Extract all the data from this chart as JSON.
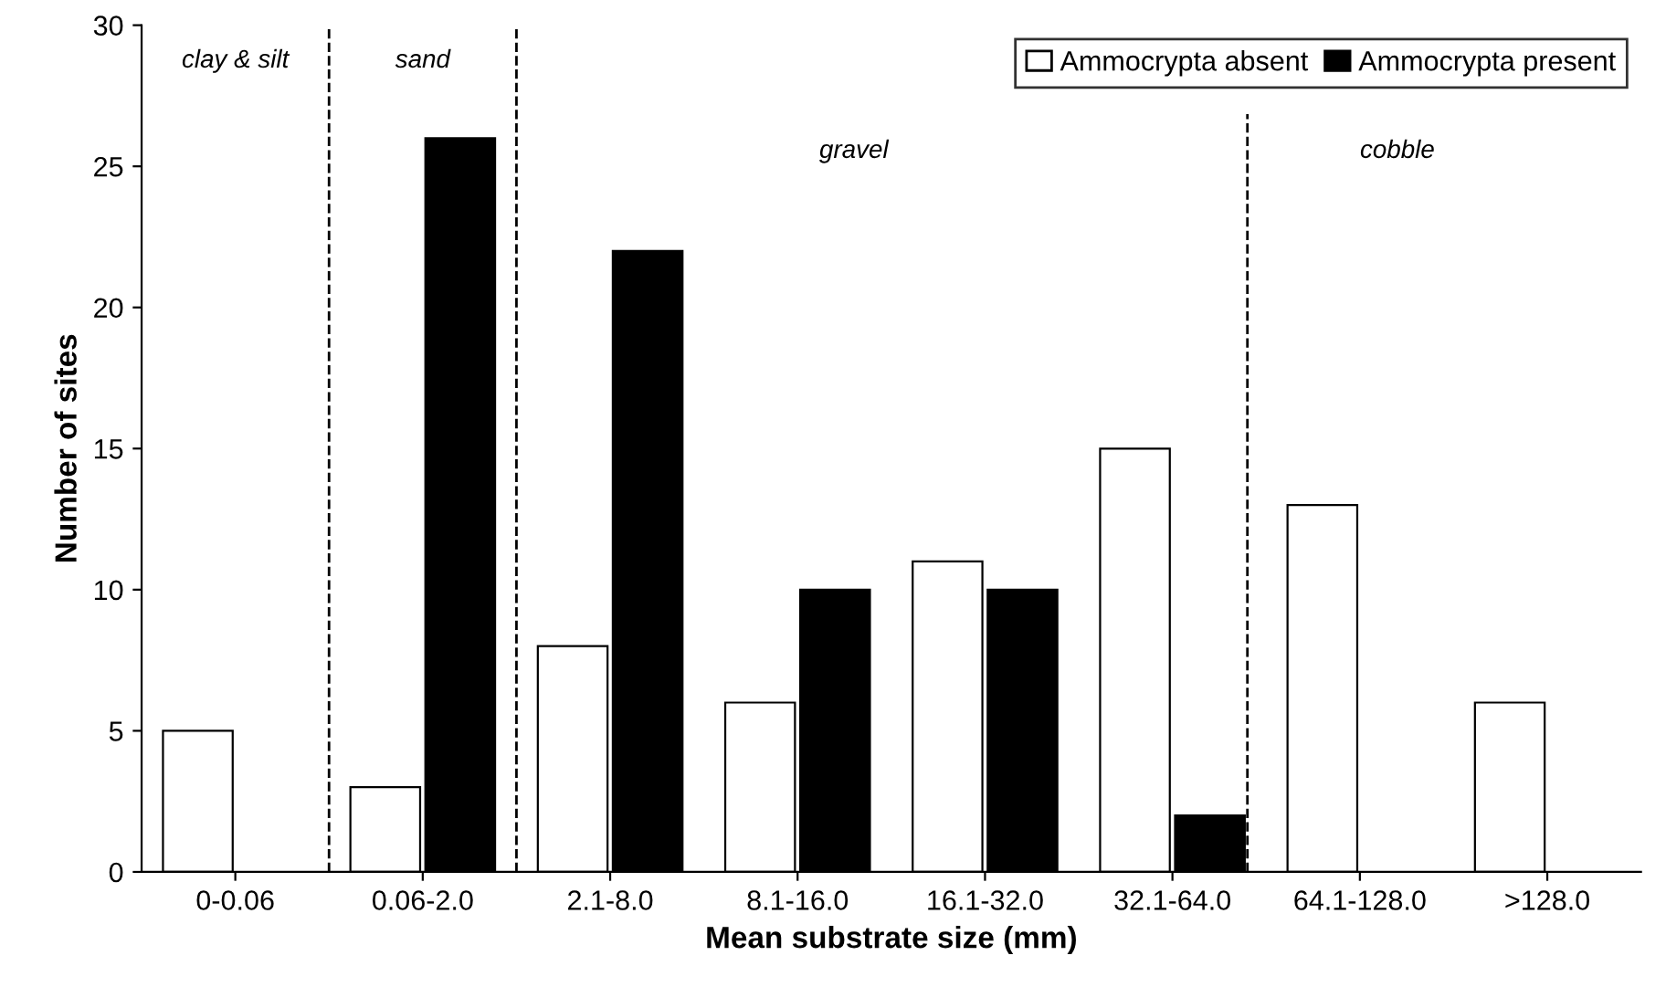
{
  "chart_data": {
    "type": "bar",
    "xlabel": "Mean substrate size (mm)",
    "ylabel": "Number of sites",
    "categories": [
      "0-0.06",
      "0.06-2.0",
      "2.1-8.0",
      "8.1-16.0",
      "16.1-32.0",
      "32.1-64.0",
      "64.1-128.0",
      ">128.0"
    ],
    "series": [
      {
        "name": "Ammocrypta absent",
        "color": "#ffffff",
        "values": [
          5,
          3,
          8,
          6,
          11,
          15,
          13,
          6
        ]
      },
      {
        "name": "Ammocrypta present",
        "color": "#000000",
        "values": [
          null,
          26,
          22,
          10,
          10,
          2,
          null,
          null
        ]
      }
    ],
    "ylim": [
      0,
      30
    ],
    "yticks": [
      0,
      5,
      10,
      15,
      20,
      25,
      30
    ],
    "annotations": [
      "clay & silt",
      "sand",
      "gravel",
      "cobble"
    ],
    "legend": "top right",
    "grid": false
  }
}
